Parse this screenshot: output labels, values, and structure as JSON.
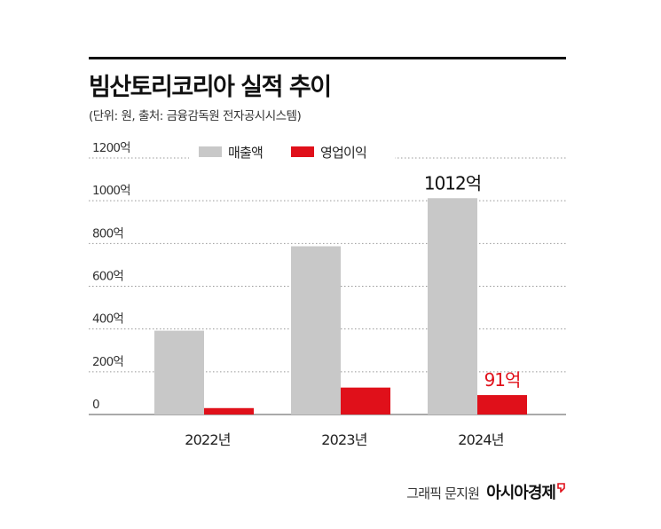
{
  "header": {
    "title": "빔산토리코리아 실적 추이",
    "subtitle": "(단위: 원, 출처: 금융감독원 전자공시시스템)"
  },
  "footer": {
    "credit": "그래픽 문지원",
    "brand": "아시아경제"
  },
  "colors": {
    "revenue": "#c8c8c8",
    "operating_profit": "#e0101a",
    "grid": "#999999",
    "axis_text": "#333333"
  },
  "chart_data": {
    "type": "bar",
    "title": "빔산토리코리아 실적 추이",
    "categories": [
      "2022년",
      "2023년",
      "2024년"
    ],
    "series": [
      {
        "name": "매출액",
        "values": [
          392,
          787,
          1012
        ]
      },
      {
        "name": "영업이익",
        "values": [
          30,
          126,
          91
        ]
      }
    ],
    "data_labels": [
      {
        "series": 0,
        "index": 2,
        "text": "1012억"
      },
      {
        "series": 1,
        "index": 2,
        "text": "91억"
      }
    ],
    "y_ticks": [
      {
        "value": 0,
        "label": "0"
      },
      {
        "value": 200,
        "label": "200억"
      },
      {
        "value": 400,
        "label": "400억"
      },
      {
        "value": 600,
        "label": "600억"
      },
      {
        "value": 800,
        "label": "800억"
      },
      {
        "value": 1000,
        "label": "1000억"
      },
      {
        "value": 1200,
        "label": "1200억"
      }
    ],
    "ylim": [
      0,
      1200
    ],
    "xlabel": "",
    "ylabel": "",
    "grid": true,
    "legend": [
      "매출액",
      "영업이익"
    ],
    "legend_position": "top-left"
  }
}
